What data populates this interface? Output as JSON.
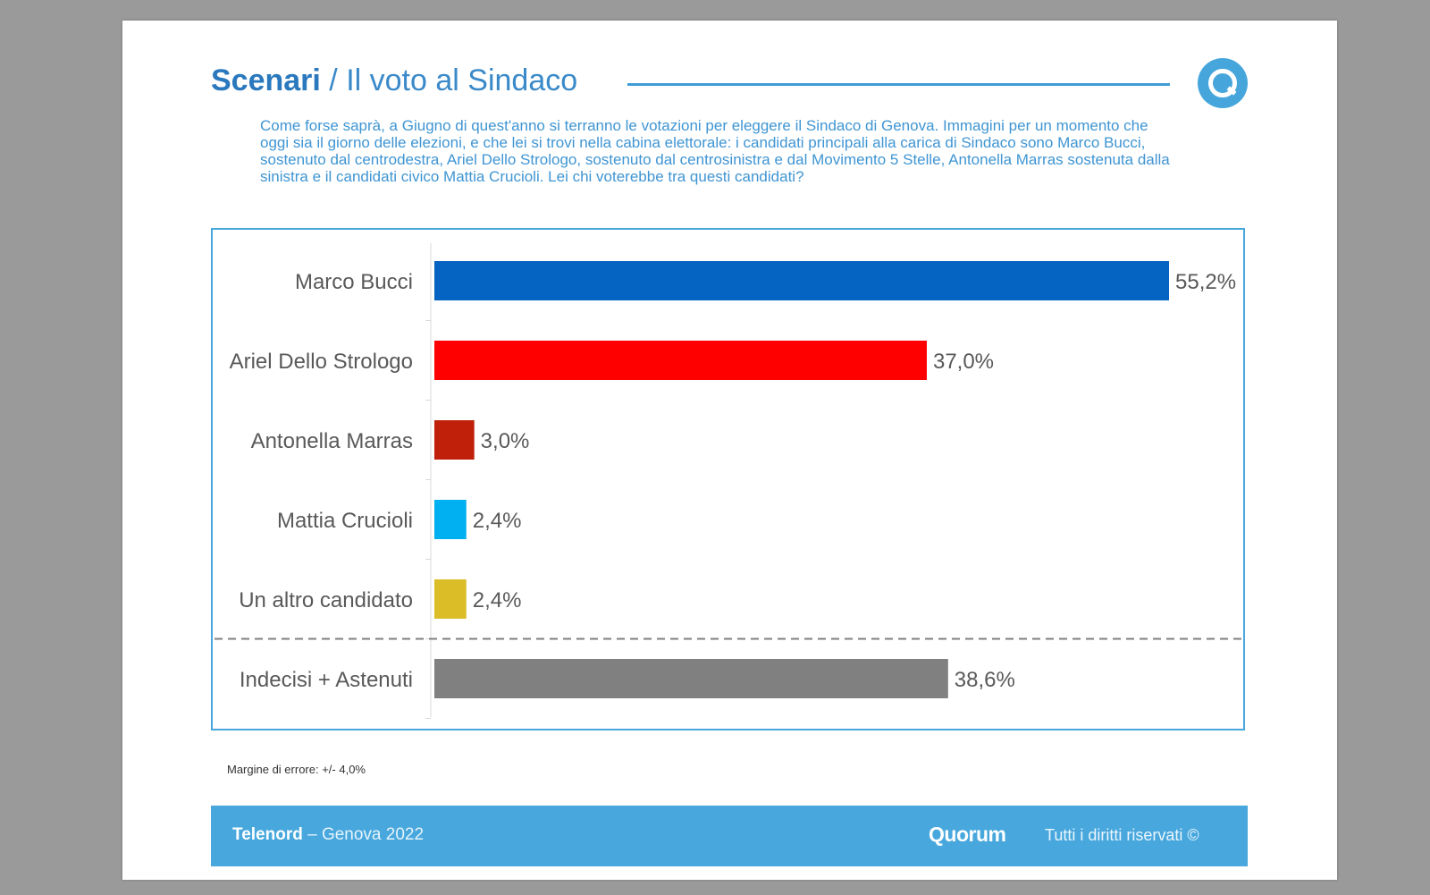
{
  "header": {
    "title_strong": "Scenari",
    "title_rest": " / Il voto al Sindaco",
    "question": "Come forse saprà, a Giugno di quest'anno si terranno le votazioni per eleggere il Sindaco di Genova. Immagini per un momento che oggi sia il giorno delle elezioni, e che lei si trovi nella cabina elettorale: i candidati principali alla carica di Sindaco sono Marco Bucci, sostenuto dal centrodestra, Ariel Dello Strologo, sostenuto dal centrosinistra e dal Movimento 5 Stelle, Antonella Marras sostenuta dalla sinistra e il candidati civico Mattia Crucioli. Lei chi voterebbe tra questi candidati?"
  },
  "logo": {
    "icon": "quorum-q-icon",
    "color": "#46a6dc"
  },
  "chart_data": {
    "type": "bar",
    "orientation": "horizontal",
    "title": "Il voto al Sindaco",
    "xlabel": "",
    "ylabel": "",
    "xlim": [
      0,
      55.2
    ],
    "grid": false,
    "categories": [
      "Marco Bucci",
      "Ariel Dello Strologo",
      "Antonella Marras",
      "Mattia Crucioli",
      "Un altro candidato",
      "Indecisi + Astenuti"
    ],
    "values": [
      55.2,
      37.0,
      3.0,
      2.4,
      2.4,
      38.6
    ],
    "labels": [
      "55,2%",
      "37,0%",
      "3,0%",
      "2,4%",
      "2,4%",
      "38,6%"
    ],
    "colors": [
      "#0563c1",
      "#ff0000",
      "#c0200a",
      "#00b0f0",
      "#dbbd27",
      "#808080"
    ],
    "separator_before_index": 5
  },
  "note": "Margine di errore: +/- 4,0%",
  "footer": {
    "brand": "Telenord",
    "subtitle": " – Genova 2022",
    "logo_text": "Quorum",
    "rights": "Tutti i diritti riservati ©"
  }
}
